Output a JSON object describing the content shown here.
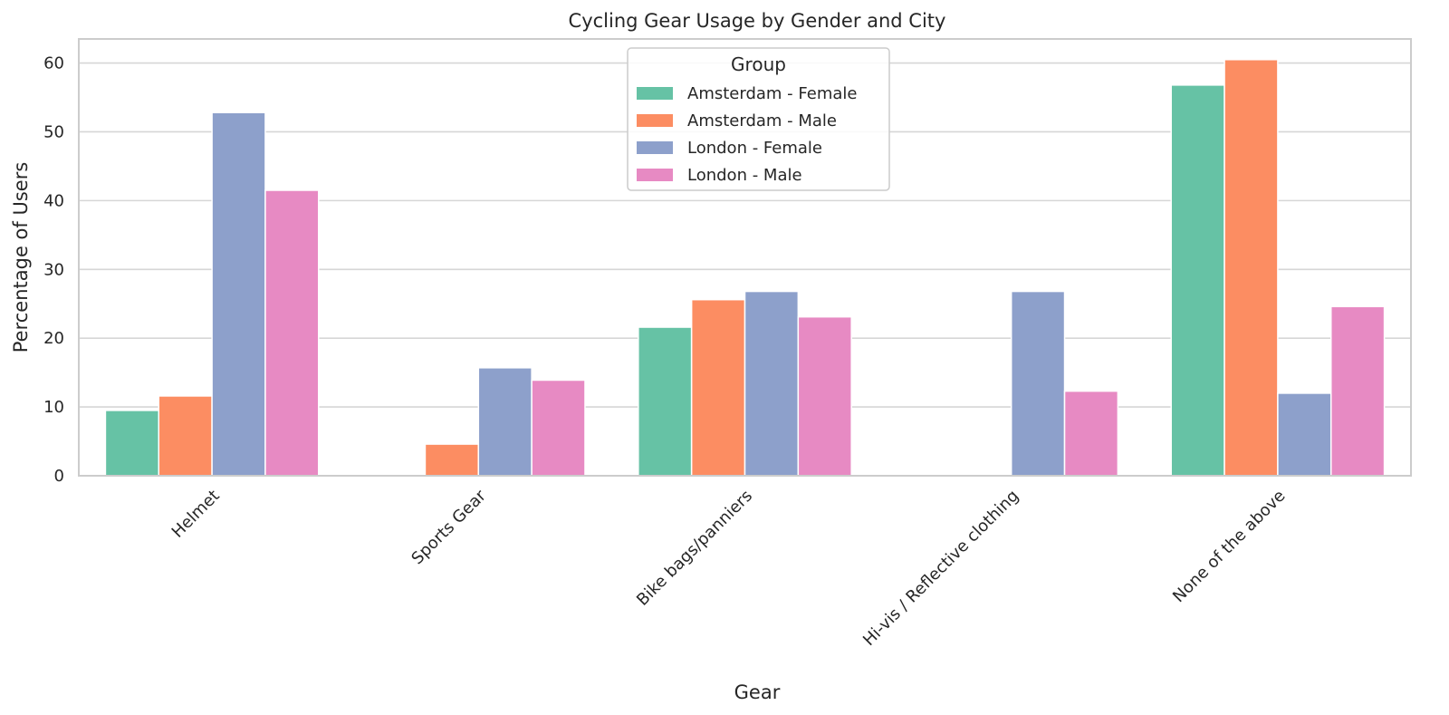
{
  "chart_data": {
    "type": "bar",
    "title": "Cycling Gear Usage by Gender and City",
    "xlabel": "Gear",
    "ylabel": "Percentage of Users",
    "categories": [
      "Helmet",
      "Sports Gear",
      "Bike bags/panniers",
      "Hi-vis / Reflective clothing",
      "None of the above"
    ],
    "ylim": [
      0,
      63.5
    ],
    "yticks": [
      0,
      10,
      20,
      30,
      40,
      50,
      60
    ],
    "grid": "horizontal",
    "legend": {
      "title": "Group",
      "placement": "top-center"
    },
    "series": [
      {
        "name": "Amsterdam - Female",
        "color": "#66c2a5",
        "values": [
          9.5,
          0,
          21.6,
          0,
          56.8
        ]
      },
      {
        "name": "Amsterdam - Male",
        "color": "#fc8d62",
        "values": [
          11.6,
          4.6,
          25.6,
          0,
          60.5
        ]
      },
      {
        "name": "London - Female",
        "color": "#8da0cb",
        "values": [
          52.8,
          15.7,
          26.8,
          26.8,
          12.0
        ]
      },
      {
        "name": "London - Male",
        "color": "#e78ac3",
        "values": [
          41.5,
          13.9,
          23.1,
          12.3,
          24.6
        ]
      }
    ]
  }
}
